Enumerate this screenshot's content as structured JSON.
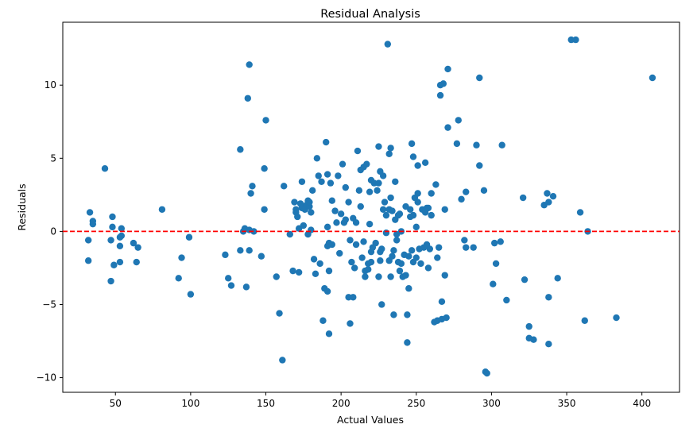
{
  "chart_data": {
    "type": "scatter",
    "title": "Residual Analysis",
    "xlabel": "Actual Values",
    "ylabel": "Residuals",
    "xlim": [
      15,
      425
    ],
    "ylim": [
      -11,
      14.3
    ],
    "xticks": [
      50,
      100,
      150,
      200,
      250,
      300,
      350,
      400
    ],
    "yticks": [
      -10,
      -5,
      0,
      5,
      10
    ],
    "point_color": "#1f77b4",
    "reference_line": {
      "y": 0,
      "color": "#ff0000",
      "style": "dashed"
    },
    "grid": false,
    "series": [
      {
        "points": [
          [
            33,
            1.3
          ],
          [
            35,
            0.7
          ],
          [
            35,
            0.5
          ],
          [
            32,
            -0.6
          ],
          [
            32,
            -2.0
          ],
          [
            43,
            4.3
          ],
          [
            47,
            -0.6
          ],
          [
            48,
            1.0
          ],
          [
            48,
            0.3
          ],
          [
            47,
            -3.4
          ],
          [
            49,
            -2.3
          ],
          [
            53,
            -2.1
          ],
          [
            53,
            -0.4
          ],
          [
            54,
            0.2
          ],
          [
            54,
            -0.3
          ],
          [
            53,
            -1.0
          ],
          [
            62,
            -0.8
          ],
          [
            64,
            -2.1
          ],
          [
            65,
            -1.1
          ],
          [
            81,
            1.5
          ],
          [
            92,
            -3.2
          ],
          [
            94,
            -1.8
          ],
          [
            99,
            -0.4
          ],
          [
            100,
            -4.3
          ],
          [
            123,
            -1.6
          ],
          [
            125,
            -3.2
          ],
          [
            127,
            -3.7
          ],
          [
            133,
            5.6
          ],
          [
            133,
            -1.3
          ],
          [
            135,
            0.0
          ],
          [
            136,
            0.2
          ],
          [
            137,
            -3.8
          ],
          [
            138,
            9.1
          ],
          [
            139,
            11.4
          ],
          [
            139,
            0.1
          ],
          [
            139,
            -1.3
          ],
          [
            140,
            2.6
          ],
          [
            141,
            3.1
          ],
          [
            142,
            0.0
          ],
          [
            147,
            -1.7
          ],
          [
            149,
            4.3
          ],
          [
            149,
            1.5
          ],
          [
            150,
            7.6
          ],
          [
            157,
            -3.1
          ],
          [
            159,
            -5.6
          ],
          [
            161,
            -8.8
          ],
          [
            162,
            3.1
          ],
          [
            166,
            -0.2
          ],
          [
            168,
            -2.7
          ],
          [
            169,
            2.0
          ],
          [
            170,
            1.5
          ],
          [
            170,
            1.3
          ],
          [
            171,
            1.0
          ],
          [
            172,
            0.2
          ],
          [
            172,
            -2.8
          ],
          [
            173,
            1.9
          ],
          [
            174,
            1.6
          ],
          [
            174,
            3.4
          ],
          [
            175,
            0.4
          ],
          [
            176,
            1.5
          ],
          [
            177,
            1.8
          ],
          [
            178,
            -0.2
          ],
          [
            178,
            2.1
          ],
          [
            179,
            1.7
          ],
          [
            179,
            2.0
          ],
          [
            180,
            0.1
          ],
          [
            180,
            1.3
          ],
          [
            181,
            2.8
          ],
          [
            182,
            -1.9
          ],
          [
            183,
            -2.9
          ],
          [
            184,
            5.0
          ],
          [
            185,
            3.8
          ],
          [
            186,
            -2.2
          ],
          [
            187,
            3.4
          ],
          [
            188,
            -6.1
          ],
          [
            189,
            -3.9
          ],
          [
            190,
            6.1
          ],
          [
            191,
            -4.1
          ],
          [
            191,
            3.9
          ],
          [
            191,
            0.3
          ],
          [
            191,
            -1.0
          ],
          [
            192,
            -0.8
          ],
          [
            192,
            -7.0
          ],
          [
            192,
            -2.7
          ],
          [
            193,
            3.3
          ],
          [
            194,
            -0.9
          ],
          [
            194,
            2.1
          ],
          [
            196,
            1.4
          ],
          [
            197,
            0.6
          ],
          [
            198,
            3.8
          ],
          [
            199,
            -1.5
          ],
          [
            200,
            1.2
          ],
          [
            201,
            4.6
          ],
          [
            202,
            0.6
          ],
          [
            203,
            3.0
          ],
          [
            203,
            0.8
          ],
          [
            205,
            2.0
          ],
          [
            205,
            -4.5
          ],
          [
            206,
            -6.3
          ],
          [
            206,
            -0.6
          ],
          [
            207,
            -2.1
          ],
          [
            208,
            0.9
          ],
          [
            208,
            -4.5
          ],
          [
            209,
            -2.5
          ],
          [
            210,
            0.6
          ],
          [
            210,
            -0.9
          ],
          [
            211,
            5.5
          ],
          [
            212,
            2.8
          ],
          [
            213,
            1.7
          ],
          [
            213,
            4.2
          ],
          [
            214,
            -1.8
          ],
          [
            215,
            4.4
          ],
          [
            215,
            -0.7
          ],
          [
            216,
            -2.7
          ],
          [
            216,
            -3.1
          ],
          [
            217,
            4.6
          ],
          [
            218,
            -2.2
          ],
          [
            218,
            -2.6
          ],
          [
            219,
            0.5
          ],
          [
            219,
            2.7
          ],
          [
            220,
            -2.1
          ],
          [
            220,
            -1.4
          ],
          [
            220,
            3.5
          ],
          [
            221,
            -1.1
          ],
          [
            222,
            3.3
          ],
          [
            223,
            -0.8
          ],
          [
            224,
            2.8
          ],
          [
            225,
            5.8
          ],
          [
            225,
            3.3
          ],
          [
            225,
            -3.1
          ],
          [
            226,
            -2.0
          ],
          [
            226,
            -1.4
          ],
          [
            226,
            4.1
          ],
          [
            227,
            -1.2
          ],
          [
            227,
            -5.0
          ],
          [
            228,
            1.5
          ],
          [
            228,
            3.8
          ],
          [
            229,
            2.0
          ],
          [
            230,
            -0.1
          ],
          [
            230,
            1.1
          ],
          [
            231,
            12.8
          ],
          [
            232,
            -2.0
          ],
          [
            232,
            1.5
          ],
          [
            232,
            5.3
          ],
          [
            233,
            -3.1
          ],
          [
            233,
            5.7
          ],
          [
            233,
            2.3
          ],
          [
            234,
            1.4
          ],
          [
            234,
            -1.7
          ],
          [
            235,
            -5.7
          ],
          [
            235,
            -1.3
          ],
          [
            236,
            3.4
          ],
          [
            236,
            0.8
          ],
          [
            237,
            -0.6
          ],
          [
            237,
            -0.2
          ],
          [
            238,
            -2.1
          ],
          [
            238,
            1.1
          ],
          [
            239,
            -2.7
          ],
          [
            239,
            1.2
          ],
          [
            240,
            -2.2
          ],
          [
            240,
            0.0
          ],
          [
            241,
            -3.1
          ],
          [
            242,
            -1.6
          ],
          [
            243,
            1.7
          ],
          [
            243,
            -3.0
          ],
          [
            244,
            -5.7
          ],
          [
            244,
            -7.6
          ],
          [
            245,
            -3.9
          ],
          [
            245,
            -1.7
          ],
          [
            246,
            1.5
          ],
          [
            246,
            1.0
          ],
          [
            247,
            6.0
          ],
          [
            247,
            -1.3
          ],
          [
            248,
            1.1
          ],
          [
            248,
            -2.1
          ],
          [
            248,
            5.1
          ],
          [
            249,
            2.3
          ],
          [
            250,
            0.3
          ],
          [
            250,
            -1.8
          ],
          [
            251,
            2.0
          ],
          [
            251,
            2.6
          ],
          [
            251,
            4.5
          ],
          [
            252,
            -1.2
          ],
          [
            253,
            -2.2
          ],
          [
            254,
            1.5
          ],
          [
            255,
            -1.1
          ],
          [
            256,
            4.7
          ],
          [
            256,
            1.3
          ],
          [
            257,
            1.6
          ],
          [
            257,
            -0.9
          ],
          [
            258,
            1.6
          ],
          [
            258,
            -2.5
          ],
          [
            259,
            -1.2
          ],
          [
            260,
            2.6
          ],
          [
            260,
            1.1
          ],
          [
            262,
            -6.2
          ],
          [
            263,
            3.2
          ],
          [
            264,
            -6.1
          ],
          [
            264,
            -1.8
          ],
          [
            265,
            -1.1
          ],
          [
            266,
            9.3
          ],
          [
            266,
            10.0
          ],
          [
            267,
            -6.0
          ],
          [
            267,
            -4.8
          ],
          [
            268,
            10.1
          ],
          [
            269,
            1.5
          ],
          [
            269,
            -3.0
          ],
          [
            270,
            -5.9
          ],
          [
            271,
            7.1
          ],
          [
            271,
            11.1
          ],
          [
            277,
            6.0
          ],
          [
            278,
            7.6
          ],
          [
            280,
            2.2
          ],
          [
            282,
            -0.6
          ],
          [
            283,
            -1.1
          ],
          [
            283,
            2.7
          ],
          [
            288,
            -1.1
          ],
          [
            290,
            5.9
          ],
          [
            292,
            10.5
          ],
          [
            292,
            4.5
          ],
          [
            295,
            2.8
          ],
          [
            296,
            -9.6
          ],
          [
            297,
            -9.7
          ],
          [
            301,
            -3.6
          ],
          [
            302,
            -0.8
          ],
          [
            303,
            -2.2
          ],
          [
            306,
            -0.7
          ],
          [
            307,
            5.9
          ],
          [
            310,
            -4.7
          ],
          [
            321,
            2.3
          ],
          [
            322,
            -3.3
          ],
          [
            325,
            -6.5
          ],
          [
            325,
            -7.3
          ],
          [
            328,
            -7.4
          ],
          [
            335,
            1.8
          ],
          [
            337,
            2.6
          ],
          [
            338,
            -4.5
          ],
          [
            338,
            -7.7
          ],
          [
            338,
            2.0
          ],
          [
            341,
            2.4
          ],
          [
            344,
            -3.2
          ],
          [
            353,
            13.1
          ],
          [
            356,
            13.1
          ],
          [
            359,
            1.3
          ],
          [
            362,
            -6.1
          ],
          [
            364,
            0.0
          ],
          [
            383,
            -5.9
          ],
          [
            407,
            10.5
          ]
        ]
      }
    ]
  }
}
